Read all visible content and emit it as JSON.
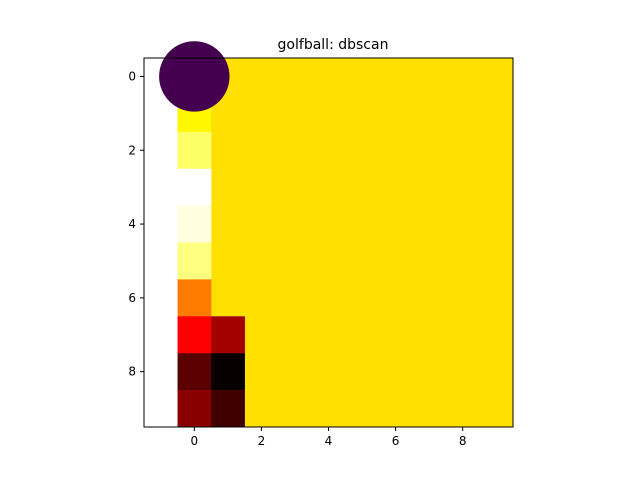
{
  "chart_data": {
    "type": "heatmap",
    "title": "golfball: dbscan",
    "xlabel": "",
    "ylabel": "",
    "xlim": [
      -1.5,
      9.5
    ],
    "ylim": [
      9.5,
      -0.5
    ],
    "y_inverted": true,
    "background_color": "#ffffff",
    "x_ticks": [
      0,
      2,
      4,
      6,
      8
    ],
    "y_ticks": [
      0,
      2,
      4,
      6,
      8
    ],
    "cells": [
      {
        "x": 0,
        "y": 1,
        "color": "#fff700"
      },
      {
        "x": 0,
        "y": 2,
        "color": "#ffff66"
      },
      {
        "x": 0,
        "y": 3,
        "color": "#ffffff"
      },
      {
        "x": 0,
        "y": 4,
        "color": "#ffffe0"
      },
      {
        "x": 0,
        "y": 5,
        "color": "#ffff80"
      },
      {
        "x": 0,
        "y": 6,
        "color": "#ff7c00"
      },
      {
        "x": 0,
        "y": 7,
        "color": "#ff0000"
      },
      {
        "x": 0,
        "y": 8,
        "color": "#5a0000"
      },
      {
        "x": 0,
        "y": 9,
        "color": "#8a0000"
      },
      {
        "x": 1,
        "y": 7,
        "color": "#a40000"
      },
      {
        "x": 1,
        "y": 8,
        "color": "#080000"
      },
      {
        "x": 1,
        "y": 9,
        "color": "#400000"
      }
    ],
    "filled_region": {
      "x_from": 0.5,
      "x_to": 9.5,
      "y_from": -0.5,
      "y_to": 9.5,
      "color": "#ffe000",
      "excludes_cells": [
        [
          1,
          7
        ],
        [
          1,
          8
        ],
        [
          1,
          9
        ]
      ],
      "x_from_bottom_rows": 1.5,
      "bottom_rows_from_y": 6.5
    },
    "marker": {
      "x": 0,
      "y": 0,
      "shape": "circle",
      "radius_data": 1.05,
      "color": "#44004f"
    }
  }
}
